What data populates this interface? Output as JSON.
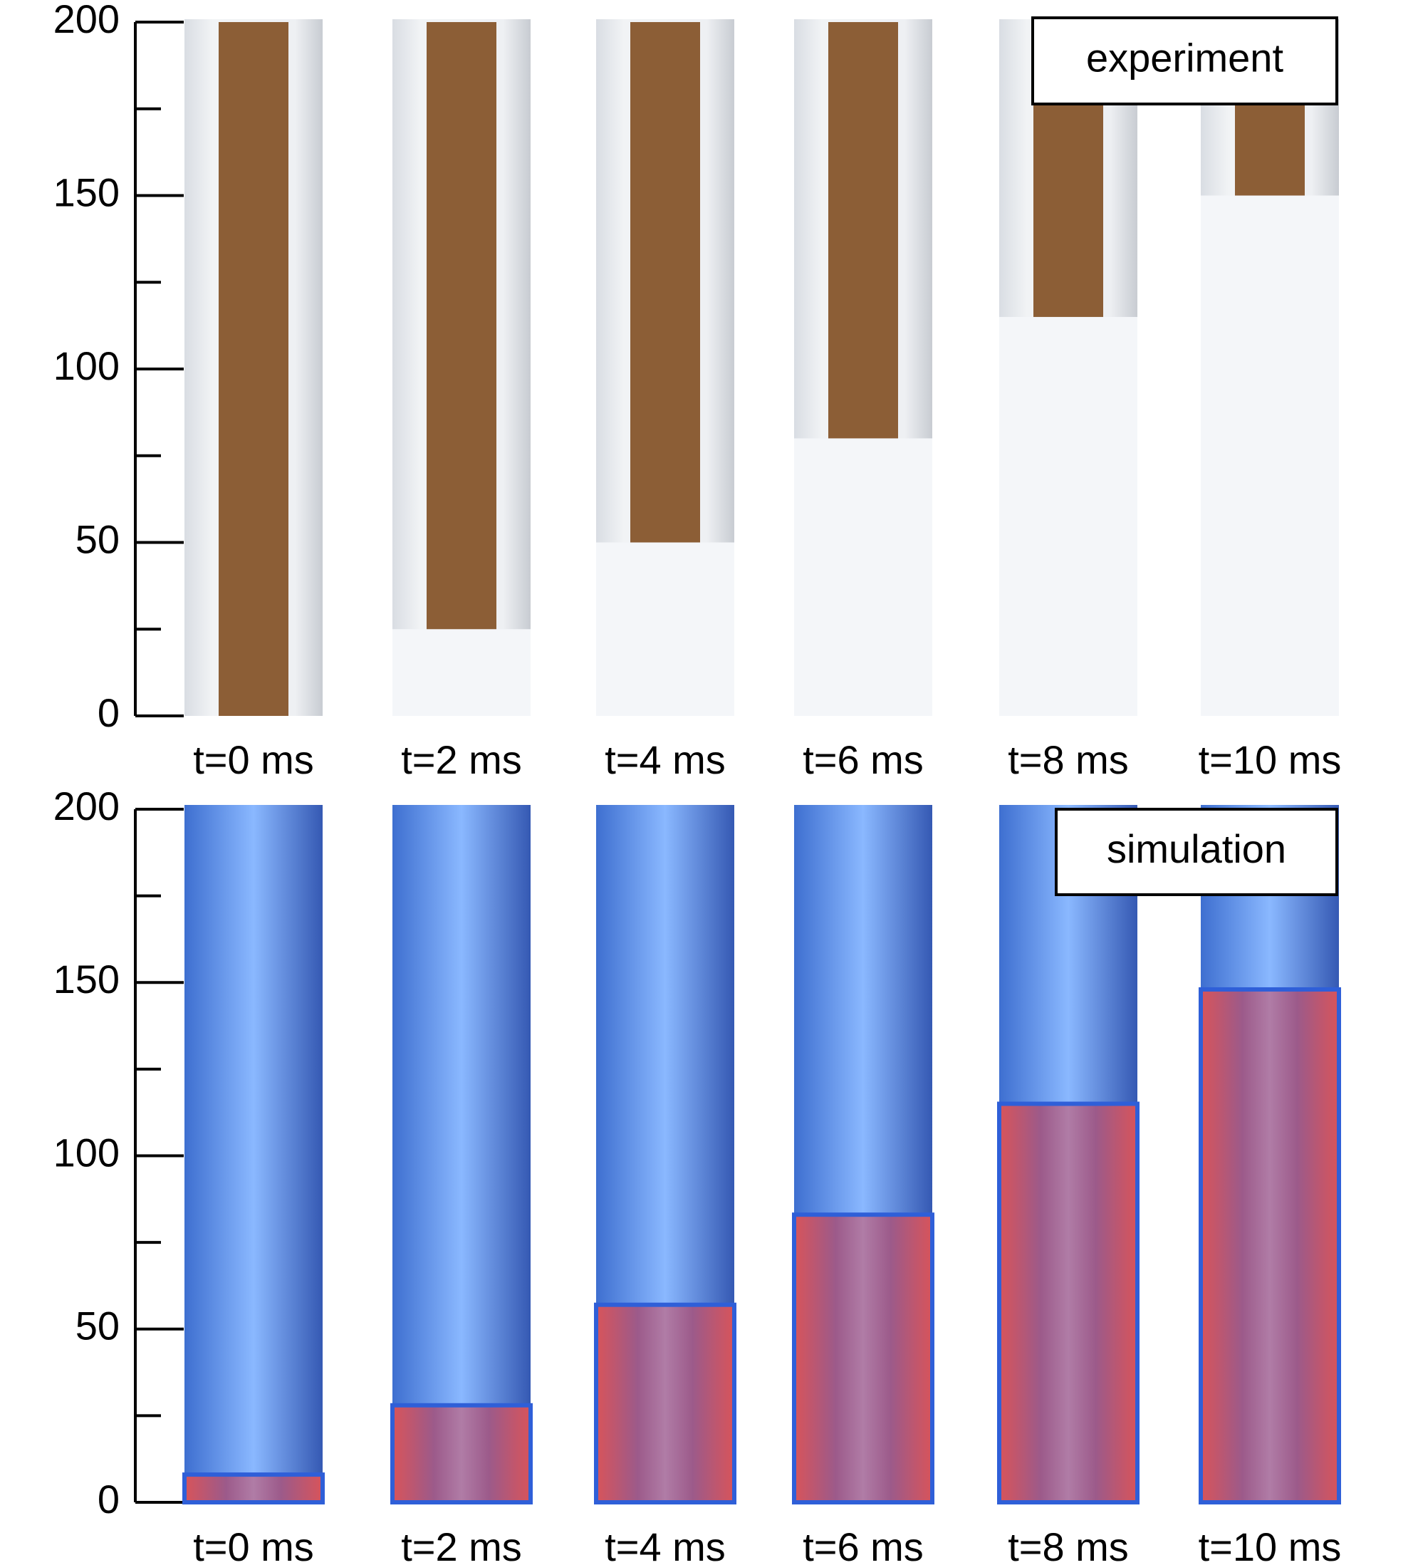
{
  "chart_data": [
    {
      "type": "experiment-columns",
      "annotation": "experiment",
      "categories": [
        "t=0 ms",
        "t=2 ms",
        "t=4 ms",
        "t=6 ms",
        "t=8 ms",
        "t=10 ms"
      ],
      "values": [
        0,
        25,
        50,
        80,
        115,
        150
      ],
      "ylim": [
        0,
        200
      ],
      "yticks": [
        0,
        50,
        100,
        150,
        200
      ],
      "minor_yticks": [
        25,
        75,
        125,
        175
      ]
    },
    {
      "type": "simulation-columns",
      "annotation": "simulation",
      "categories": [
        "t=0 ms",
        "t=2 ms",
        "t=4 ms",
        "t=6 ms",
        "t=8 ms",
        "t=10 ms"
      ],
      "values": [
        8,
        28,
        57,
        83,
        115,
        148
      ],
      "ylim": [
        0,
        200
      ],
      "yticks": [
        0,
        50,
        100,
        150,
        200
      ],
      "minor_yticks": [
        25,
        75,
        125,
        175
      ]
    }
  ]
}
